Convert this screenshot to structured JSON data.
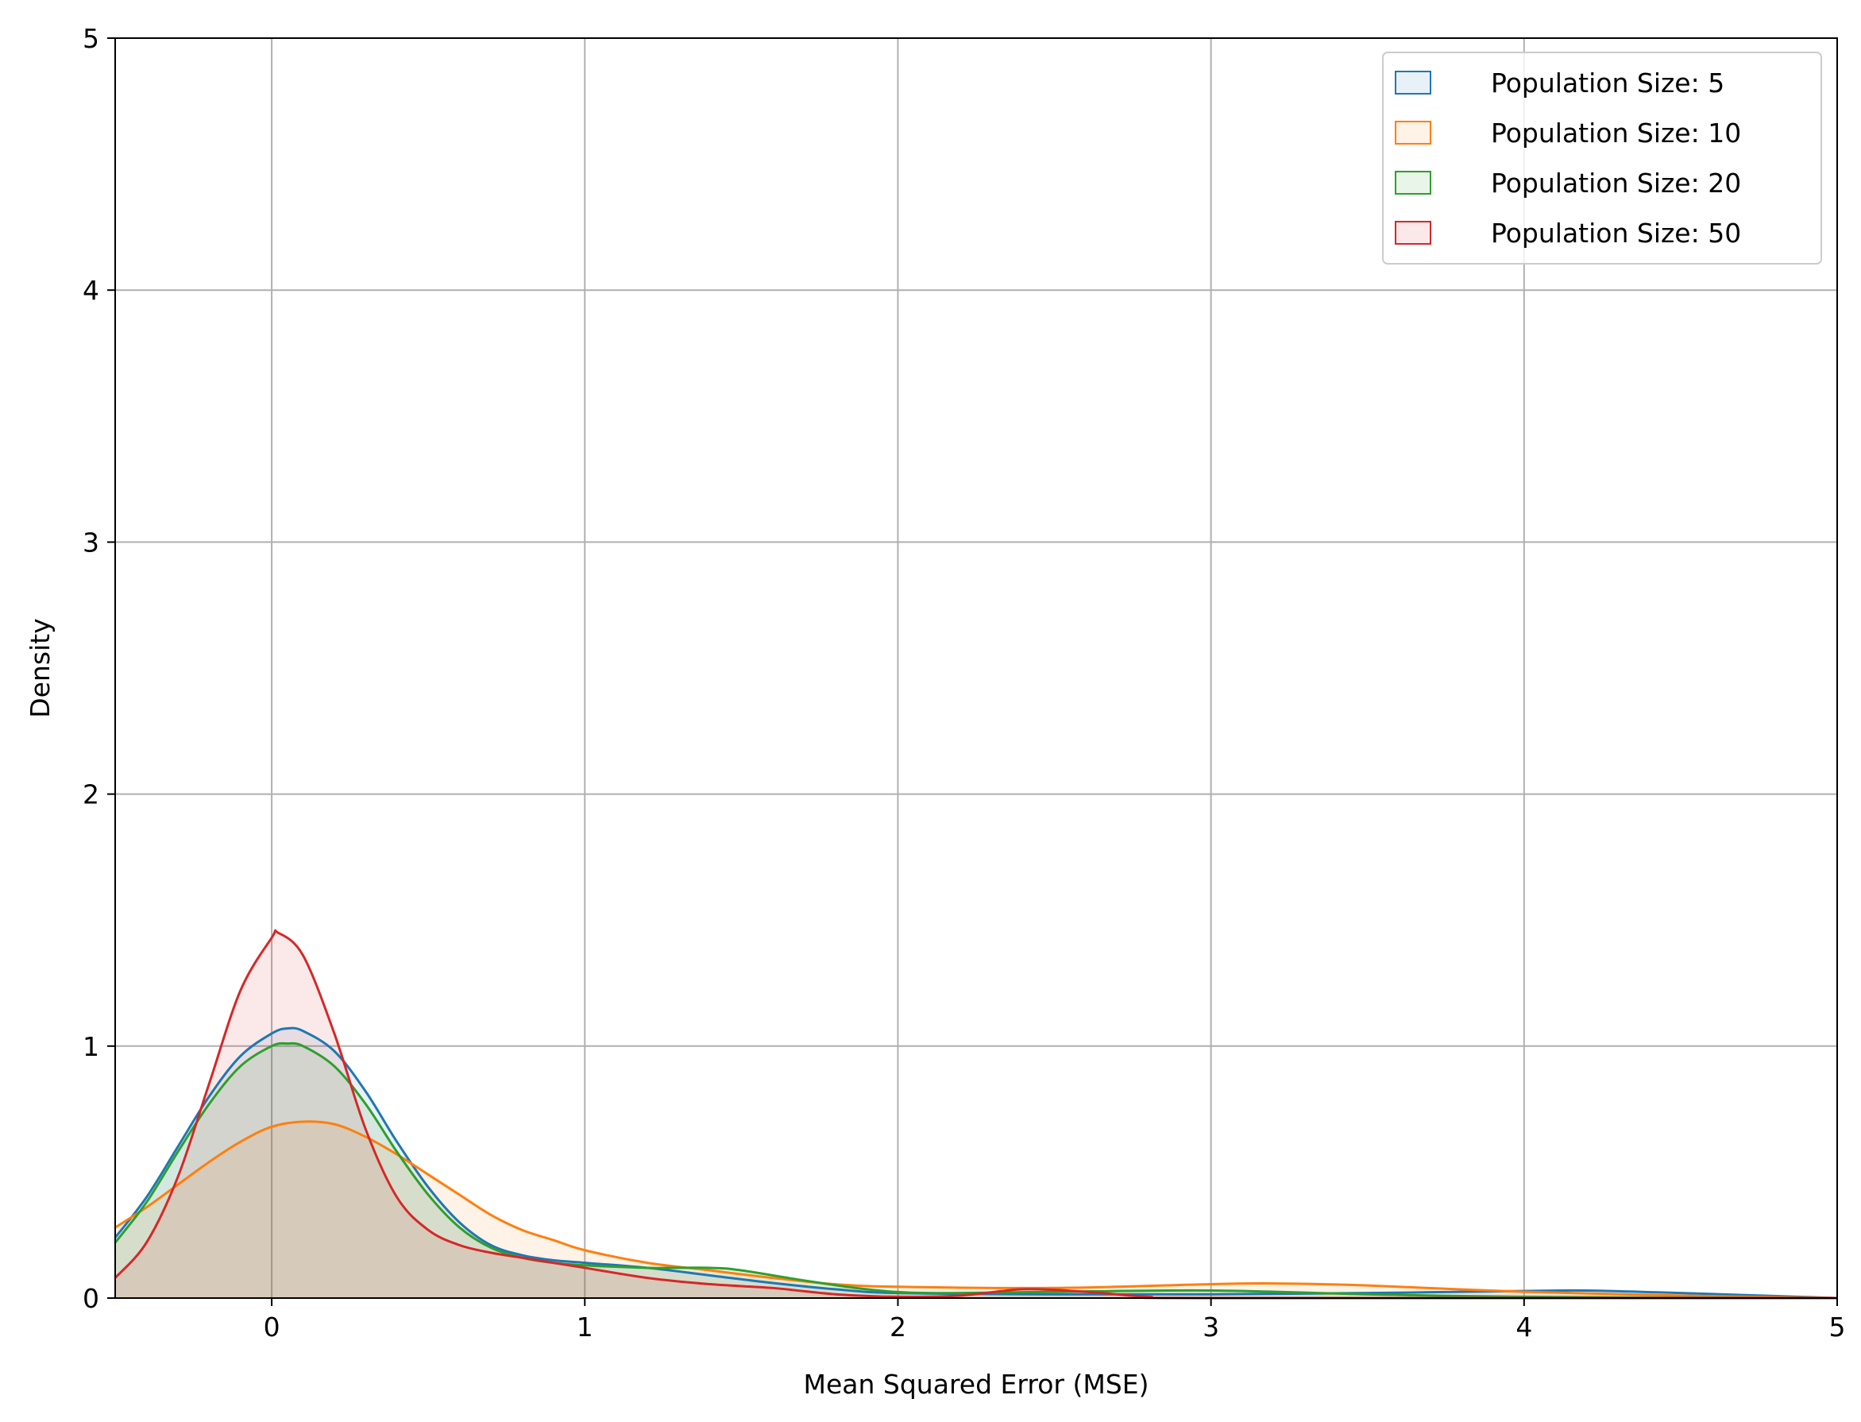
{
  "chart_data": {
    "type": "area",
    "title": "",
    "xlabel": "Mean Squared Error (MSE)",
    "ylabel": "Density",
    "xlim": [
      -0.5,
      5
    ],
    "ylim": [
      0,
      5
    ],
    "x_ticks": [
      0,
      1,
      2,
      3,
      4,
      5
    ],
    "y_ticks": [
      0,
      1,
      2,
      3,
      4,
      5
    ],
    "x_tick_labels": [
      "0",
      "1",
      "2",
      "3",
      "4",
      "5"
    ],
    "y_tick_labels": [
      "0",
      "1",
      "2",
      "3",
      "4",
      "5"
    ],
    "grid": true,
    "legend_position": "top-right",
    "series": [
      {
        "name": "Population Size: 5",
        "color": "#1f77b4",
        "points": [
          [
            -0.5,
            0.24
          ],
          [
            -0.4,
            0.4
          ],
          [
            -0.3,
            0.6
          ],
          [
            -0.2,
            0.8
          ],
          [
            -0.1,
            0.96
          ],
          [
            0,
            1.05
          ],
          [
            0.05,
            1.07
          ],
          [
            0.1,
            1.06
          ],
          [
            0.2,
            0.98
          ],
          [
            0.3,
            0.82
          ],
          [
            0.4,
            0.62
          ],
          [
            0.5,
            0.44
          ],
          [
            0.6,
            0.3
          ],
          [
            0.7,
            0.21
          ],
          [
            0.8,
            0.17
          ],
          [
            0.9,
            0.15
          ],
          [
            1.0,
            0.14
          ],
          [
            1.2,
            0.12
          ],
          [
            1.4,
            0.09
          ],
          [
            1.6,
            0.06
          ],
          [
            1.8,
            0.035
          ],
          [
            2.0,
            0.02
          ],
          [
            2.5,
            0.015
          ],
          [
            3.0,
            0.015
          ],
          [
            3.5,
            0.02
          ],
          [
            4.0,
            0.028
          ],
          [
            4.2,
            0.03
          ],
          [
            4.5,
            0.02
          ],
          [
            5.0,
            0.0
          ]
        ]
      },
      {
        "name": "Population Size: 10",
        "color": "#ff7f0e",
        "points": [
          [
            -0.5,
            0.28
          ],
          [
            -0.4,
            0.36
          ],
          [
            -0.3,
            0.45
          ],
          [
            -0.2,
            0.54
          ],
          [
            -0.1,
            0.62
          ],
          [
            0,
            0.68
          ],
          [
            0.1,
            0.7
          ],
          [
            0.2,
            0.69
          ],
          [
            0.3,
            0.64
          ],
          [
            0.4,
            0.57
          ],
          [
            0.5,
            0.49
          ],
          [
            0.6,
            0.41
          ],
          [
            0.7,
            0.33
          ],
          [
            0.8,
            0.27
          ],
          [
            0.9,
            0.23
          ],
          [
            1.0,
            0.19
          ],
          [
            1.2,
            0.14
          ],
          [
            1.4,
            0.11
          ],
          [
            1.6,
            0.08
          ],
          [
            1.8,
            0.055
          ],
          [
            2.0,
            0.045
          ],
          [
            2.5,
            0.04
          ],
          [
            3.0,
            0.055
          ],
          [
            3.2,
            0.058
          ],
          [
            3.5,
            0.05
          ],
          [
            4.0,
            0.025
          ],
          [
            4.5,
            0.01
          ],
          [
            5.0,
            0.0
          ]
        ]
      },
      {
        "name": "Population Size: 20",
        "color": "#2ca02c",
        "points": [
          [
            -0.5,
            0.22
          ],
          [
            -0.4,
            0.38
          ],
          [
            -0.3,
            0.58
          ],
          [
            -0.2,
            0.77
          ],
          [
            -0.1,
            0.92
          ],
          [
            0,
            1.0
          ],
          [
            0.05,
            1.01
          ],
          [
            0.1,
            1.0
          ],
          [
            0.2,
            0.92
          ],
          [
            0.3,
            0.77
          ],
          [
            0.4,
            0.58
          ],
          [
            0.5,
            0.41
          ],
          [
            0.6,
            0.28
          ],
          [
            0.7,
            0.2
          ],
          [
            0.8,
            0.16
          ],
          [
            0.9,
            0.14
          ],
          [
            1.0,
            0.13
          ],
          [
            1.2,
            0.12
          ],
          [
            1.4,
            0.12
          ],
          [
            1.5,
            0.11
          ],
          [
            1.7,
            0.07
          ],
          [
            1.9,
            0.035
          ],
          [
            2.1,
            0.02
          ],
          [
            2.5,
            0.025
          ],
          [
            3.0,
            0.03
          ],
          [
            3.5,
            0.015
          ],
          [
            4.0,
            0.005
          ],
          [
            5.0,
            0.0
          ]
        ]
      },
      {
        "name": "Population Size: 50",
        "color": "#d62728",
        "points": [
          [
            -0.5,
            0.08
          ],
          [
            -0.4,
            0.22
          ],
          [
            -0.3,
            0.48
          ],
          [
            -0.2,
            0.85
          ],
          [
            -0.1,
            1.22
          ],
          [
            0,
            1.43
          ],
          [
            0.02,
            1.45
          ],
          [
            0.1,
            1.36
          ],
          [
            0.2,
            1.05
          ],
          [
            0.3,
            0.67
          ],
          [
            0.4,
            0.4
          ],
          [
            0.5,
            0.27
          ],
          [
            0.6,
            0.21
          ],
          [
            0.7,
            0.18
          ],
          [
            0.8,
            0.16
          ],
          [
            0.9,
            0.14
          ],
          [
            1.0,
            0.12
          ],
          [
            1.2,
            0.08
          ],
          [
            1.4,
            0.055
          ],
          [
            1.6,
            0.04
          ],
          [
            1.8,
            0.015
          ],
          [
            2.0,
            0.005
          ],
          [
            2.2,
            0.01
          ],
          [
            2.4,
            0.035
          ],
          [
            2.6,
            0.025
          ],
          [
            2.8,
            0.005
          ],
          [
            3.0,
            0.0
          ],
          [
            5.0,
            0.0
          ]
        ]
      }
    ]
  }
}
